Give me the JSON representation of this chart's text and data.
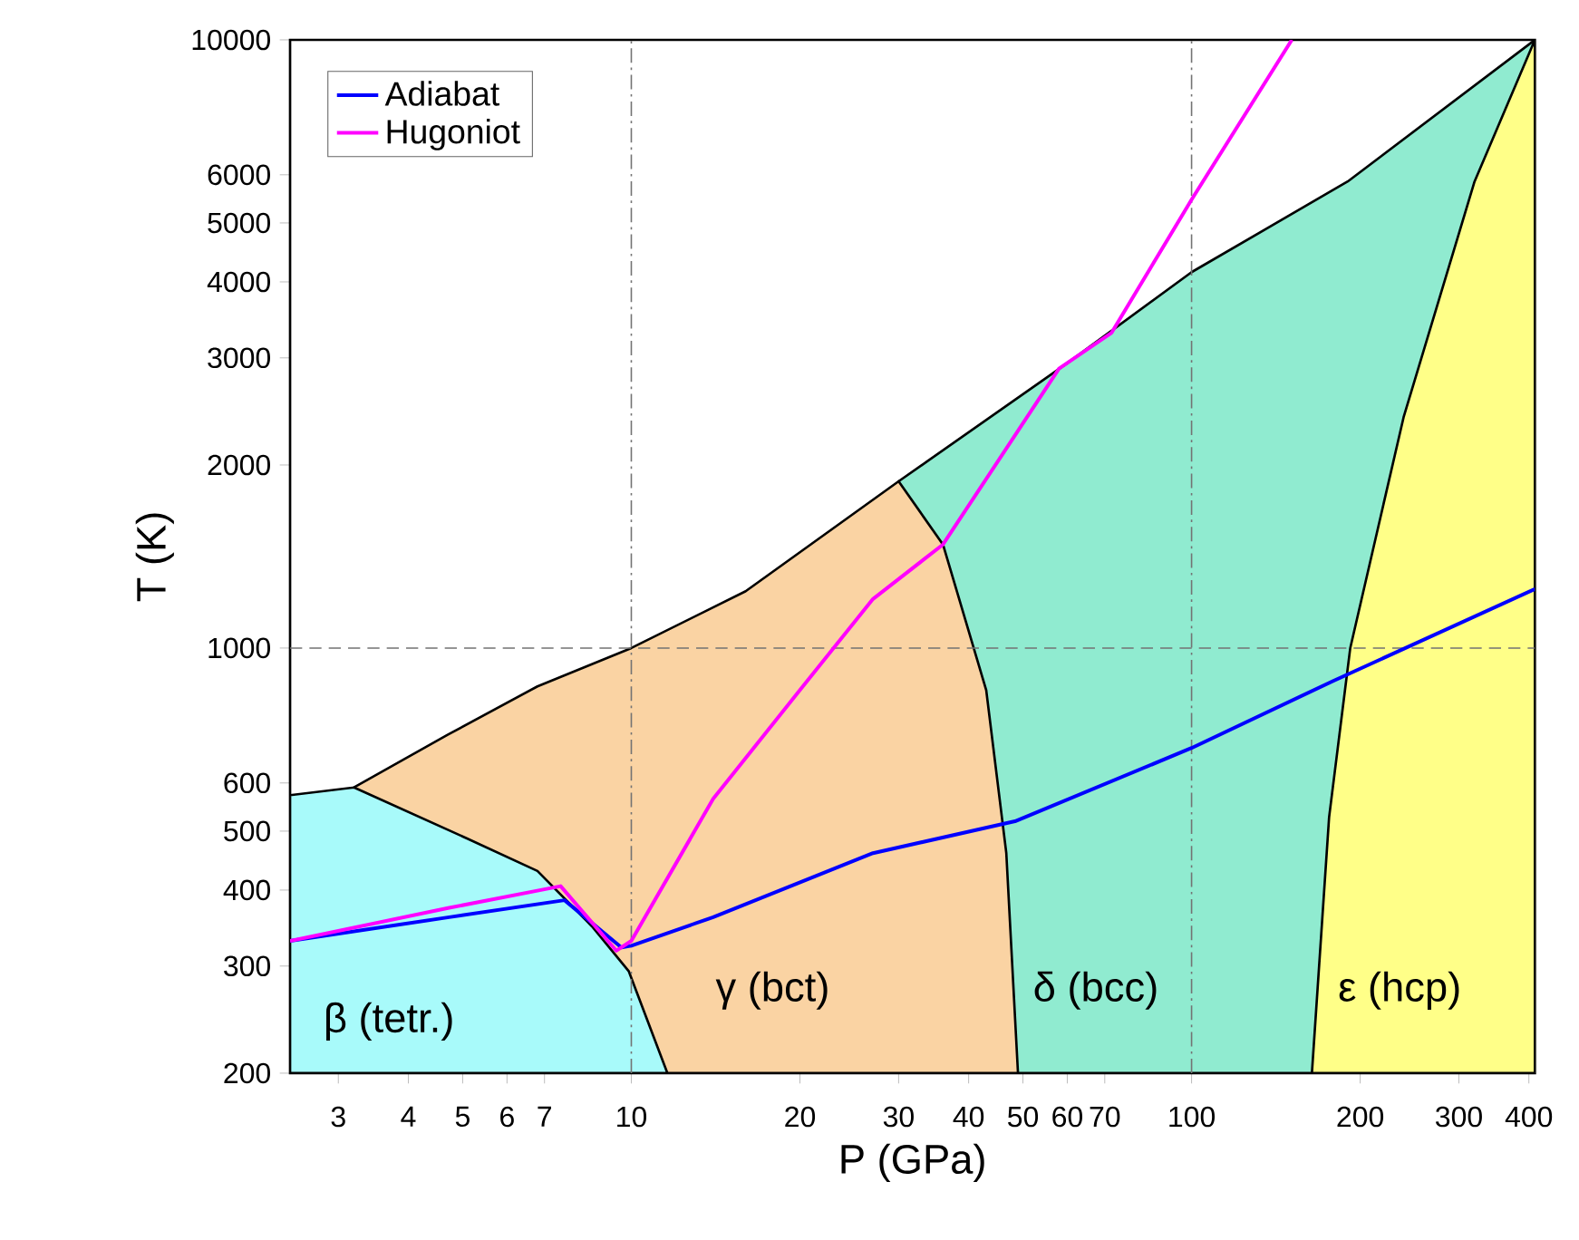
{
  "chart_data": {
    "type": "line",
    "xlabel": "P (GPa)",
    "ylabel": "T (K)",
    "log": "xy",
    "legend": "top left",
    "grid": false,
    "xlim": [
      2.46,
      410
    ],
    "ylim": [
      200,
      10000
    ],
    "xticks": [
      3,
      4,
      5,
      6,
      7,
      10,
      20,
      30,
      40,
      50,
      60,
      70,
      100,
      200,
      300,
      400
    ],
    "yticks": [
      200,
      300,
      400,
      500,
      600,
      1000,
      2000,
      3000,
      4000,
      5000,
      6000,
      10000
    ],
    "series": [
      {
        "type": "area",
        "color": "#90ebd0",
        "x": [
          30,
          60,
          100,
          190,
          410
        ],
        "values": [
          1880,
          2940,
          4150,
          5850,
          10000
        ]
      },
      {
        "type": "area",
        "color": "#fad3a3",
        "x": [
          3.2,
          4.7,
          6.8,
          10,
          16,
          30,
          36,
          43,
          46.7,
          49
        ],
        "values": [
          590,
          720,
          865,
          1000,
          1240,
          1880,
          1480,
          853,
          460,
          200
        ]
      },
      {
        "type": "area",
        "color": "#ffff88",
        "x": [
          164,
          176,
          192,
          239,
          320,
          410
        ],
        "values": [
          200,
          527,
          1000,
          2395,
          5850,
          10000
        ]
      },
      {
        "type": "area",
        "color": "#a8fafa",
        "x": [
          2.46,
          3.2,
          5.1,
          6.8,
          8.5,
          9.9,
          11.6
        ],
        "values": [
          573,
          590,
          486,
          430,
          349,
          294,
          200
        ]
      },
      {
        "name": "Adiabat",
        "color": "#0000ff",
        "x": [
          2.46,
          4.73,
          7.6,
          9.6,
          10,
          14,
          27,
          48.4,
          100,
          179,
          410
        ],
        "values": [
          330,
          361,
          385,
          322,
          324,
          361,
          460,
          519,
          685,
          883,
          1250
        ]
      },
      {
        "name": "Hugoniot",
        "color": "#ff00ff",
        "x": [
          2.46,
          4.73,
          7.48,
          9.4,
          10,
          14,
          20,
          27,
          36,
          58,
          72,
          100,
          151
        ],
        "values": [
          330,
          374,
          406,
          318,
          330,
          565,
          853,
          1204,
          1480,
          2880,
          3300,
          5460,
          10000
        ]
      }
    ],
    "ref_lines": [
      {
        "axis": "x",
        "value": 10,
        "line_style": "dashdot"
      },
      {
        "axis": "x",
        "value": 100,
        "line_style": "dashdot"
      },
      {
        "axis": "y",
        "value": 1000,
        "line_style": "dashed"
      }
    ],
    "annotations": [
      "β (tetr.)",
      "γ (bct)",
      "δ (bcc)",
      "ε (hcp)"
    ]
  }
}
